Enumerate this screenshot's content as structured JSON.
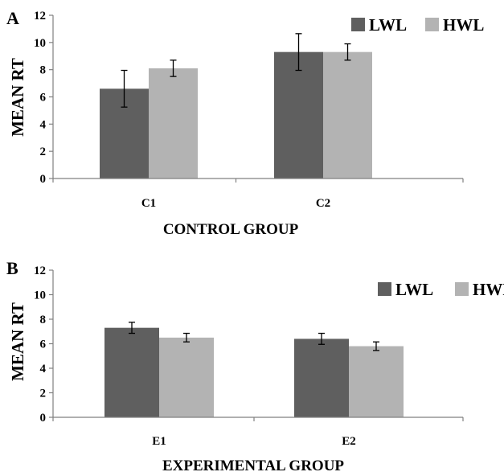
{
  "chart_data": [
    {
      "type": "bar",
      "panel_label": "A",
      "categories": [
        "C1",
        "C2"
      ],
      "series": [
        {
          "name": "LWL",
          "color": "#5f5f5f",
          "values": [
            6.6,
            9.3
          ],
          "errors": [
            1.35,
            1.35
          ]
        },
        {
          "name": "HWL",
          "color": "#b3b3b3",
          "values": [
            8.1,
            9.3
          ],
          "errors": [
            0.6,
            0.6
          ]
        }
      ],
      "xlabel": "CONTROL GROUP",
      "ylabel": "MEAN RT",
      "ylim": [
        0,
        12
      ],
      "yticks": [
        "0",
        "2",
        "4",
        "6",
        "8",
        "10",
        "12"
      ],
      "legend_position": "top-right",
      "grid": false
    },
    {
      "type": "bar",
      "panel_label": "B",
      "categories": [
        "E1",
        "E2"
      ],
      "series": [
        {
          "name": "LWL",
          "color": "#5f5f5f",
          "values": [
            7.3,
            6.4
          ],
          "errors": [
            0.45,
            0.45
          ]
        },
        {
          "name": "HWL",
          "color": "#b3b3b3",
          "values": [
            6.5,
            5.8
          ],
          "errors": [
            0.35,
            0.35
          ]
        }
      ],
      "xlabel": "EXPERIMENTAL GROUP",
      "ylabel": "MEAN RT",
      "ylim": [
        0,
        12
      ],
      "yticks": [
        "0",
        "2",
        "4",
        "6",
        "8",
        "10",
        "12"
      ],
      "legend_position": "top-right",
      "grid": false
    }
  ]
}
